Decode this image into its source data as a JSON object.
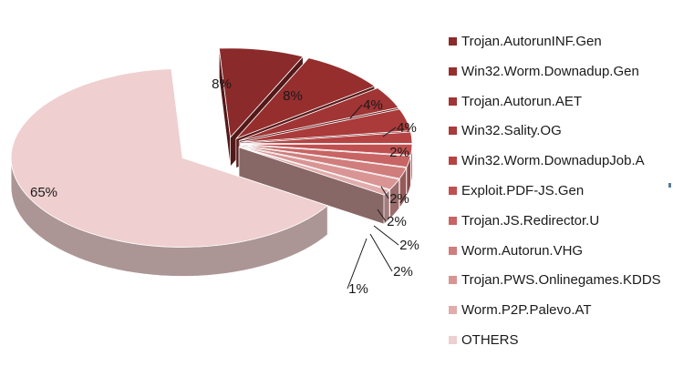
{
  "chart_data": {
    "type": "pie",
    "style": "3d-exploded",
    "title": "",
    "legend_position": "right",
    "slices": [
      {
        "name": "Trojan.AutorunINF.Gen",
        "value": 8,
        "label": "8%",
        "color": "#8b2a2a"
      },
      {
        "name": "Win32.Worm.Downadup.Gen",
        "value": 8,
        "label": "8%",
        "color": "#962e2e"
      },
      {
        "name": "Trojan.Autorun.AET",
        "value": 4,
        "label": "4%",
        "color": "#a13434"
      },
      {
        "name": "Win32.Sality.OG",
        "value": 4,
        "label": "4%",
        "color": "#ab3a3a"
      },
      {
        "name": "Win32.Worm.DownadupJob.A",
        "value": 2,
        "label": "2%",
        "color": "#b64343"
      },
      {
        "name": "Exploit.PDF-JS.Gen",
        "value": 2,
        "label": "2%",
        "color": "#c05050"
      },
      {
        "name": "Trojan.JS.Redirector.U",
        "value": 2,
        "label": "2%",
        "color": "#c86464"
      },
      {
        "name": "Worm.Autorun.VHG",
        "value": 2,
        "label": "2%",
        "color": "#d07d7d"
      },
      {
        "name": "Trojan.PWS.Onlinegames.KDDS",
        "value": 2,
        "label": "2%",
        "color": "#d99494"
      },
      {
        "name": "Worm.P2P.Palevo.AT",
        "value": 1,
        "label": "1%",
        "color": "#e2acac"
      },
      {
        "name": "OTHERS",
        "value": 65,
        "label": "65%",
        "color": "#efcfcf"
      }
    ]
  }
}
